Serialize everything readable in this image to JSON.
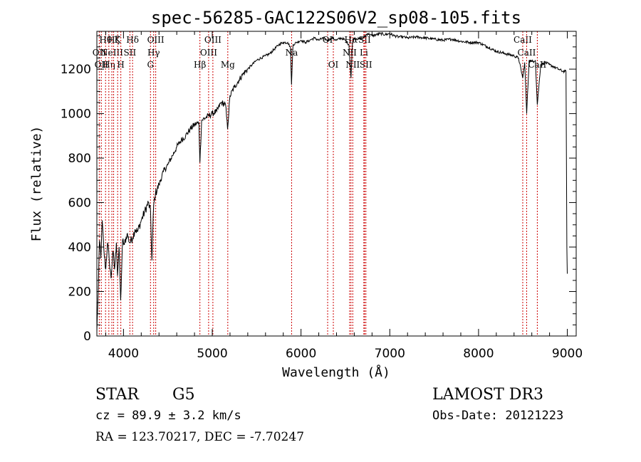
{
  "chart_data": {
    "type": "line",
    "title": "spec-56285-GAC122S06V2_sp08-105.fits",
    "xlabel": "Wavelength (Å)",
    "ylabel": "Flux (relative)",
    "xlim": [
      3700,
      9100
    ],
    "ylim": [
      0,
      1370
    ],
    "xticks": [
      4000,
      5000,
      6000,
      7000,
      8000,
      9000
    ],
    "xtick_labels": [
      "4000",
      "5000",
      "6000",
      "7000",
      "8000",
      "9000"
    ],
    "yticks": [
      0,
      200,
      400,
      600,
      800,
      1000,
      1200
    ],
    "ytick_labels": [
      "0",
      "200",
      "400",
      "600",
      "800",
      "1000",
      "1200"
    ],
    "series": [
      {
        "name": "spectrum",
        "x": [
          3700,
          3715,
          3730,
          3745,
          3760,
          3780,
          3800,
          3820,
          3840,
          3860,
          3880,
          3900,
          3920,
          3933,
          3950,
          3968,
          3990,
          4010,
          4040,
          4070,
          4102,
          4130,
          4160,
          4200,
          4240,
          4280,
          4305,
          4320,
          4340,
          4360,
          4400,
          4450,
          4500,
          4550,
          4600,
          4650,
          4700,
          4750,
          4800,
          4850,
          4861,
          4880,
          4920,
          4960,
          5000,
          5050,
          5100,
          5150,
          5172,
          5200,
          5250,
          5300,
          5350,
          5400,
          5450,
          5500,
          5550,
          5600,
          5650,
          5700,
          5750,
          5800,
          5850,
          5880,
          5893,
          5910,
          5950,
          6000,
          6050,
          6100,
          6150,
          6200,
          6250,
          6300,
          6350,
          6400,
          6450,
          6500,
          6540,
          6563,
          6580,
          6600,
          6650,
          6700,
          6750,
          6800,
          6850,
          6900,
          6950,
          7000,
          7050,
          7100,
          7150,
          7200,
          7300,
          7400,
          7500,
          7600,
          7700,
          7800,
          7900,
          8000,
          8100,
          8200,
          8300,
          8400,
          8450,
          8498,
          8520,
          8542,
          8570,
          8600,
          8640,
          8662,
          8700,
          8750,
          8800,
          8850,
          8900,
          8950,
          8985,
          8995,
          9000
        ],
        "values": [
          20,
          200,
          430,
          350,
          520,
          380,
          300,
          420,
          340,
          260,
          380,
          300,
          420,
          270,
          400,
          160,
          430,
          410,
          460,
          420,
          440,
          480,
          470,
          520,
          560,
          600,
          560,
          340,
          590,
          640,
          680,
          740,
          770,
          810,
          850,
          880,
          900,
          930,
          950,
          960,
          780,
          970,
          980,
          990,
          1000,
          1010,
          1050,
          1040,
          930,
          1080,
          1120,
          1150,
          1180,
          1200,
          1220,
          1240,
          1250,
          1260,
          1270,
          1290,
          1310,
          1320,
          1320,
          1300,
          1130,
          1310,
          1320,
          1330,
          1320,
          1330,
          1340,
          1330,
          1340,
          1330,
          1340,
          1330,
          1340,
          1330,
          1310,
          1160,
          1320,
          1340,
          1335,
          1340,
          1360,
          1350,
          1355,
          1360,
          1355,
          1360,
          1350,
          1345,
          1345,
          1340,
          1345,
          1340,
          1335,
          1330,
          1335,
          1325,
          1320,
          1320,
          1300,
          1280,
          1270,
          1260,
          1250,
          1160,
          1230,
          1000,
          1240,
          1235,
          1240,
          1040,
          1220,
          1230,
          1220,
          1210,
          1200,
          1190,
          1190,
          400,
          280
        ]
      }
    ],
    "lines": [
      {
        "wavelength": 3727,
        "label": "OII",
        "row": 2
      },
      {
        "wavelength": 3750,
        "label": "OII",
        "row": 3
      },
      {
        "wavelength": 3798,
        "label": "Hθ",
        "row": 1
      },
      {
        "wavelength": 3835,
        "label": "Hη",
        "row": 3
      },
      {
        "wavelength": 3869,
        "label": "NeIII",
        "row": 2
      },
      {
        "wavelength": 3889,
        "label": "Hζ",
        "row": 1
      },
      {
        "wavelength": 3934,
        "label": "K",
        "row": 1
      },
      {
        "wavelength": 3970,
        "label": "H",
        "row": 3
      },
      {
        "wavelength": 4072,
        "label": "SII",
        "row": 2
      },
      {
        "wavelength": 4102,
        "label": "Hδ",
        "row": 1
      },
      {
        "wavelength": 4304,
        "label": "G",
        "row": 3
      },
      {
        "wavelength": 4340,
        "label": "Hγ",
        "row": 2
      },
      {
        "wavelength": 4363,
        "label": "OIII",
        "row": 1
      },
      {
        "wavelength": 4861,
        "label": "Hβ",
        "row": 3
      },
      {
        "wavelength": 4959,
        "label": "OIII",
        "row": 2
      },
      {
        "wavelength": 5007,
        "label": "OIII",
        "row": 1
      },
      {
        "wavelength": 5175,
        "label": "Mg",
        "row": 3
      },
      {
        "wavelength": 5894,
        "label": "Na",
        "row": 2
      },
      {
        "wavelength": 6300,
        "label": "OI",
        "row": 1
      },
      {
        "wavelength": 6364,
        "label": "OI",
        "row": 3
      },
      {
        "wavelength": 6548,
        "label": "NII",
        "row": 2
      },
      {
        "wavelength": 6563,
        "label": "Hα",
        "row": 1
      },
      {
        "wavelength": 6583,
        "label": "NII",
        "row": 3
      },
      {
        "wavelength": 6708,
        "label": "Li",
        "row": 2
      },
      {
        "wavelength": 6716,
        "label": "SII",
        "row": 1
      },
      {
        "wavelength": 6731,
        "label": "SII",
        "row": 3
      },
      {
        "wavelength": 8498,
        "label": "CaII",
        "row": 1
      },
      {
        "wavelength": 8542,
        "label": "CaII",
        "row": 2
      },
      {
        "wavelength": 8662,
        "label": "CaII",
        "row": 3
      }
    ],
    "colors": {
      "line": "#000000",
      "marker_line": "#cc0000",
      "axes": "#000000"
    }
  },
  "info": {
    "class": "STAR",
    "subclass": "G5",
    "survey": "LAMOST DR3",
    "cz": "cz = 89.9 ± 3.2 km/s",
    "obs_date": "Obs-Date: 20121223",
    "coords": "RA = 123.70217, DEC =  -7.70247"
  }
}
